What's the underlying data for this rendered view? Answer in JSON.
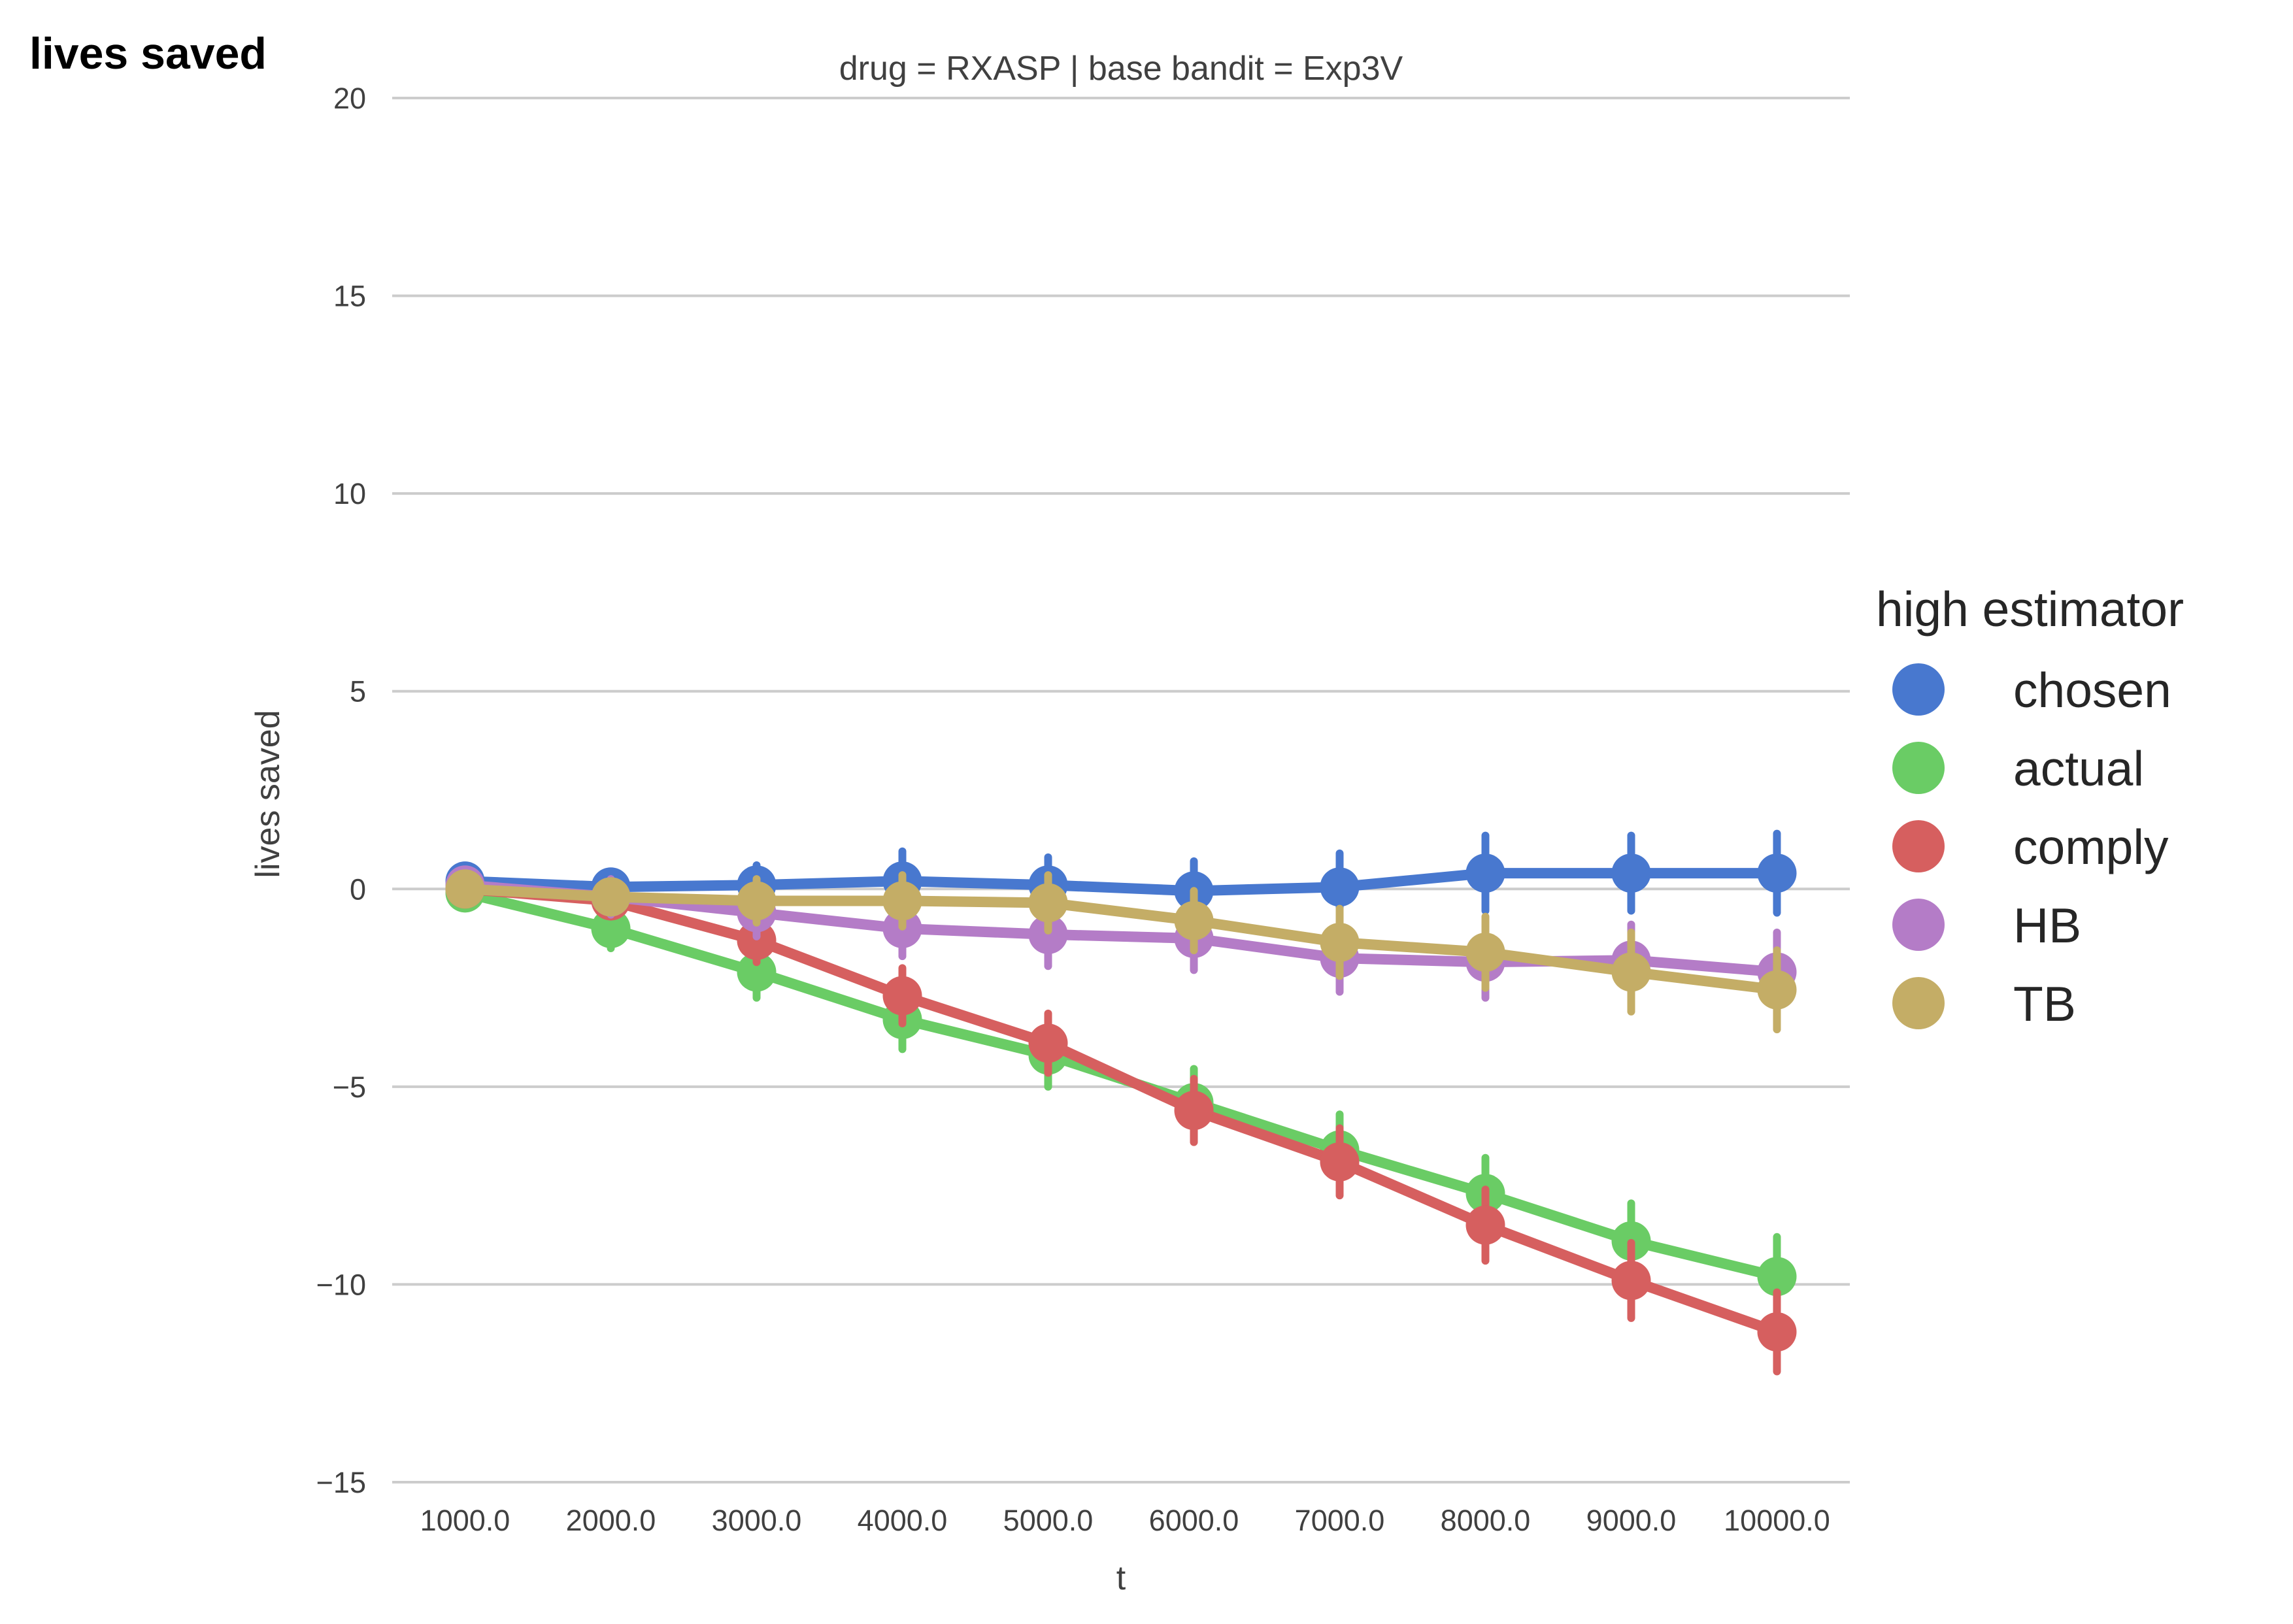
{
  "corner_label": "lives saved",
  "chart_data": {
    "type": "line",
    "title": "drug = RXASP | base bandit = Exp3V",
    "xlabel": "t",
    "ylabel": "lives saved",
    "categories": [
      "1000.0",
      "2000.0",
      "3000.0",
      "4000.0",
      "5000.0",
      "6000.0",
      "7000.0",
      "8000.0",
      "9000.0",
      "10000.0"
    ],
    "ylim": [
      -15,
      20
    ],
    "yticks": [
      {
        "value": 20,
        "label": "20"
      },
      {
        "value": 15,
        "label": "15"
      },
      {
        "value": 10,
        "label": "10"
      },
      {
        "value": 5,
        "label": "5"
      },
      {
        "value": 0,
        "label": "0"
      },
      {
        "value": -5,
        "label": "−5"
      },
      {
        "value": -10,
        "label": "−10"
      },
      {
        "value": -15,
        "label": "−15"
      }
    ],
    "grid": "horizontal",
    "legend": {
      "title": "high estimator",
      "placement": "right"
    },
    "series": [
      {
        "name": "chosen",
        "color": "#4878cf",
        "values": [
          0.2,
          0.05,
          0.1,
          0.2,
          0.1,
          -0.05,
          0.05,
          0.4,
          0.4,
          0.4
        ],
        "errors": [
          0.3,
          0.35,
          0.5,
          0.75,
          0.7,
          0.75,
          0.85,
          0.95,
          0.95,
          1.0
        ]
      },
      {
        "name": "actual",
        "color": "#6acc65",
        "values": [
          -0.1,
          -1.0,
          -2.1,
          -3.3,
          -4.2,
          -5.4,
          -6.6,
          -7.7,
          -8.9,
          -9.8
        ],
        "errors": [
          0.25,
          0.5,
          0.65,
          0.75,
          0.8,
          0.85,
          0.9,
          0.9,
          0.95,
          1.0
        ]
      },
      {
        "name": "comply",
        "color": "#d65f5f",
        "values": [
          0.0,
          -0.3,
          -1.3,
          -2.7,
          -3.9,
          -5.6,
          -6.9,
          -8.5,
          -9.9,
          -11.2
        ],
        "errors": [
          0.2,
          0.4,
          0.55,
          0.7,
          0.75,
          0.8,
          0.85,
          0.9,
          0.95,
          1.0
        ]
      },
      {
        "name": "HB",
        "color": "#b47cc7",
        "values": [
          0.1,
          -0.2,
          -0.6,
          -1.0,
          -1.15,
          -1.25,
          -1.75,
          -1.85,
          -1.8,
          -2.1
        ],
        "errors": [
          0.25,
          0.45,
          0.6,
          0.7,
          0.8,
          0.8,
          0.85,
          0.9,
          0.9,
          1.0
        ]
      },
      {
        "name": "TB",
        "color": "#c4ad66",
        "values": [
          0.0,
          -0.2,
          -0.3,
          -0.3,
          -0.35,
          -0.8,
          -1.35,
          -1.6,
          -2.1,
          -2.55
        ],
        "errors": [
          0.2,
          0.4,
          0.55,
          0.65,
          0.7,
          0.75,
          0.85,
          0.9,
          1.0,
          1.0
        ]
      }
    ]
  }
}
